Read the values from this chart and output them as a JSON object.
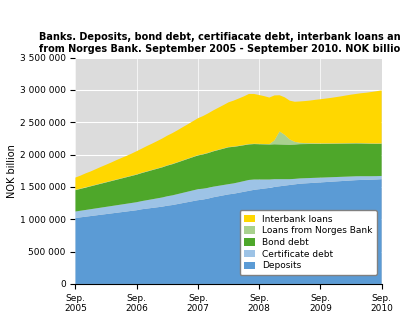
{
  "title_line1": "Banks. Deposits, bond debt, certifiacate debt, interbank loans and loans",
  "title_line2": "from Norges Bank. September 2005 - September 2010. NOK billion",
  "ylabel": "NOK billion",
  "ylim": [
    0,
    3500000
  ],
  "yticks": [
    0,
    500000,
    1000000,
    1500000,
    2000000,
    2500000,
    3000000,
    3500000
  ],
  "ytick_labels": [
    "0",
    "500 000",
    "1 000 000",
    "1 500 000",
    "2 000 000",
    "2 500 000",
    "3 000 000",
    "3 500 000"
  ],
  "xtick_labels": [
    "Sep.\n2005",
    "Sep.\n2006",
    "Sep.\n2007",
    "Sep.\n2008",
    "Sep.\n2009",
    "Sep.\n2010"
  ],
  "xtick_positions": [
    0,
    12,
    24,
    36,
    48,
    60
  ],
  "colors": {
    "deposits": "#5B9BD5",
    "certificate_debt": "#9DC3E6",
    "bond_debt": "#4EA72A",
    "norges_bank": "#A9D18E",
    "interbank": "#FFD700"
  },
  "legend_labels": [
    "Interbank loans",
    "Loans from Norges Bank",
    "Bond debt",
    "Certificate debt",
    "Deposits"
  ],
  "n_points": 61,
  "deposits": [
    1020000,
    1030000,
    1040000,
    1050000,
    1060000,
    1070000,
    1080000,
    1090000,
    1100000,
    1110000,
    1120000,
    1130000,
    1140000,
    1155000,
    1165000,
    1175000,
    1185000,
    1195000,
    1210000,
    1220000,
    1235000,
    1250000,
    1265000,
    1280000,
    1295000,
    1305000,
    1320000,
    1340000,
    1355000,
    1370000,
    1385000,
    1395000,
    1410000,
    1425000,
    1440000,
    1455000,
    1465000,
    1475000,
    1485000,
    1500000,
    1510000,
    1520000,
    1530000,
    1540000,
    1550000,
    1555000,
    1560000,
    1565000,
    1570000,
    1575000,
    1580000,
    1585000,
    1590000,
    1595000,
    1600000,
    1605000,
    1608000,
    1610000,
    1612000,
    1615000,
    1620000
  ],
  "certificate_debt": [
    100000,
    102000,
    104000,
    106000,
    108000,
    110000,
    112000,
    114000,
    116000,
    118000,
    120000,
    122000,
    124000,
    126000,
    130000,
    134000,
    138000,
    142000,
    146000,
    150000,
    154000,
    158000,
    162000,
    166000,
    170000,
    168000,
    166000,
    164000,
    162000,
    160000,
    158000,
    160000,
    162000,
    165000,
    168000,
    160000,
    150000,
    140000,
    130000,
    120000,
    110000,
    100000,
    90000,
    85000,
    82000,
    80000,
    78000,
    76000,
    74000,
    72000,
    70000,
    68000,
    66000,
    64000,
    62000,
    60000,
    58000,
    56000,
    54000,
    52000,
    50000
  ],
  "bond_debt": [
    330000,
    338000,
    346000,
    354000,
    362000,
    370000,
    378000,
    386000,
    394000,
    402000,
    410000,
    418000,
    426000,
    434000,
    442000,
    450000,
    458000,
    466000,
    474000,
    482000,
    490000,
    498000,
    506000,
    514000,
    522000,
    530000,
    538000,
    546000,
    554000,
    562000,
    570000,
    565000,
    560000,
    555000,
    550000,
    548000,
    546000,
    544000,
    542000,
    540000,
    538000,
    536000,
    534000,
    532000,
    530000,
    528000,
    526000,
    524000,
    522000,
    520000,
    518000,
    516000,
    514000,
    512000,
    510000,
    508000,
    506000,
    504000,
    502000,
    500000,
    498000
  ],
  "norges_bank": [
    5000,
    5000,
    5000,
    5000,
    5000,
    5000,
    5000,
    5000,
    5000,
    5000,
    5000,
    5000,
    5000,
    5000,
    5000,
    5000,
    5000,
    5000,
    5000,
    5000,
    5000,
    5000,
    5000,
    5000,
    5000,
    5000,
    5000,
    5000,
    5000,
    5000,
    5000,
    5000,
    5000,
    5000,
    5000,
    5000,
    5000,
    5000,
    5000,
    60000,
    200000,
    150000,
    80000,
    40000,
    20000,
    15000,
    12000,
    10000,
    8000,
    7000,
    6000,
    5000,
    5000,
    5000,
    5000,
    5000,
    5000,
    5000,
    5000,
    5000,
    5000
  ],
  "interbank": [
    190000,
    200000,
    215000,
    225000,
    240000,
    255000,
    268000,
    282000,
    298000,
    312000,
    325000,
    340000,
    358000,
    372000,
    390000,
    405000,
    422000,
    440000,
    458000,
    475000,
    492000,
    512000,
    530000,
    550000,
    570000,
    588000,
    608000,
    628000,
    648000,
    668000,
    690000,
    710000,
    730000,
    750000,
    775000,
    770000,
    755000,
    740000,
    720000,
    695000,
    560000,
    580000,
    600000,
    620000,
    640000,
    650000,
    660000,
    672000,
    682000,
    692000,
    702000,
    714000,
    725000,
    738000,
    750000,
    760000,
    772000,
    782000,
    795000,
    808000,
    820000
  ]
}
